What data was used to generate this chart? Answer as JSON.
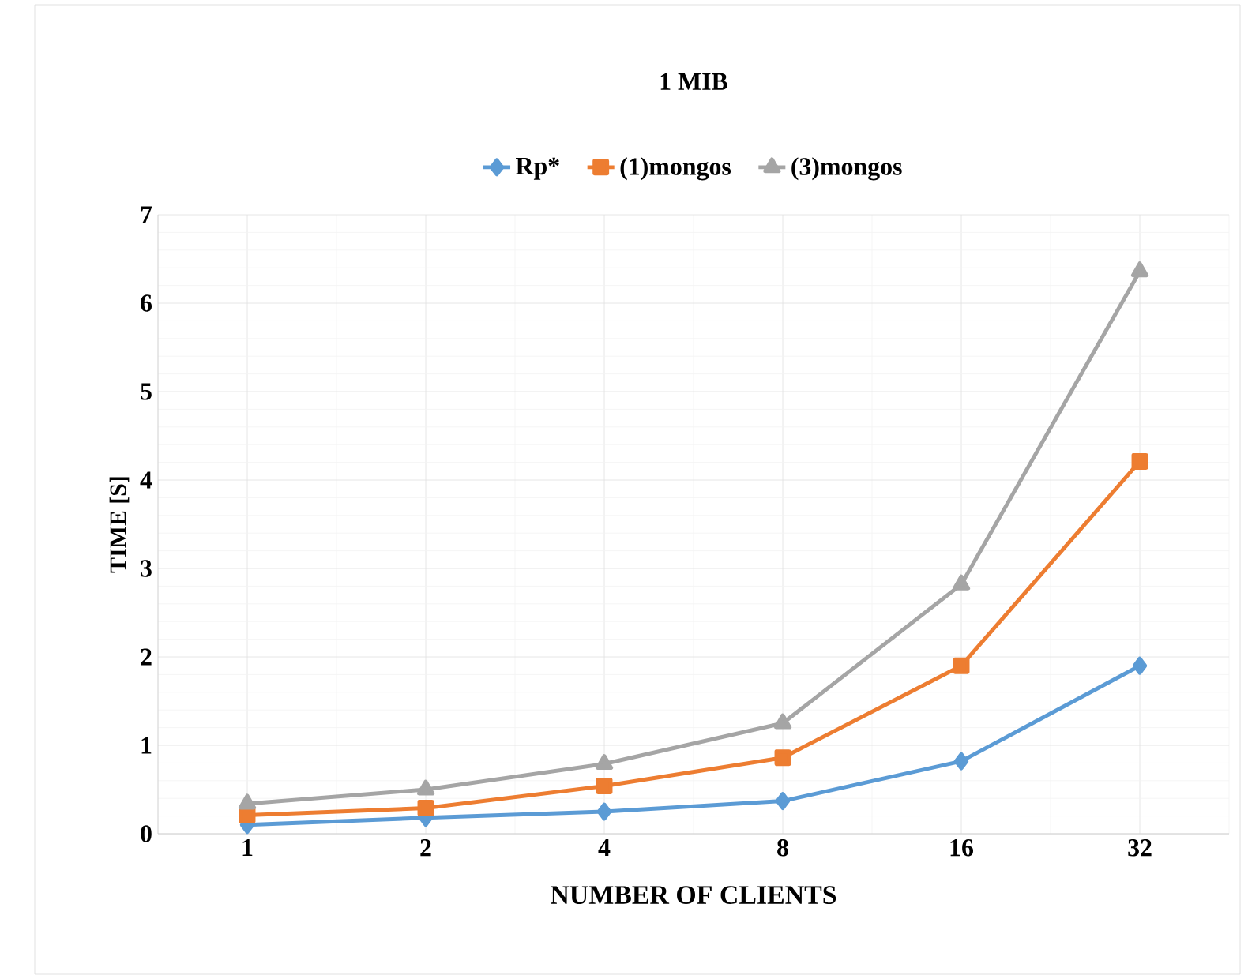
{
  "chart_data": {
    "type": "line",
    "title": "1 MIB",
    "xlabel": "NUMBER OF CLIENTS",
    "ylabel": "TIME [S]",
    "categories": [
      "1",
      "2",
      "4",
      "8",
      "16",
      "32"
    ],
    "series": [
      {
        "name": "Rp*",
        "color": "#5b9bd5",
        "marker": "diamond",
        "values": [
          0.1,
          0.18,
          0.25,
          0.37,
          0.82,
          1.9
        ]
      },
      {
        "name": "(1)mongos",
        "color": "#ed7d31",
        "marker": "square",
        "values": [
          0.21,
          0.29,
          0.54,
          0.86,
          1.9,
          4.21
        ]
      },
      {
        "name": "(3)mongos",
        "color": "#a5a5a5",
        "marker": "triangle",
        "values": [
          0.34,
          0.5,
          0.79,
          1.25,
          2.82,
          6.36
        ]
      }
    ],
    "ylim": [
      0,
      7
    ],
    "yticks": [
      0,
      1,
      2,
      3,
      4,
      5,
      6,
      7
    ],
    "grid": true,
    "legend": "top",
    "line_style": "solid"
  }
}
